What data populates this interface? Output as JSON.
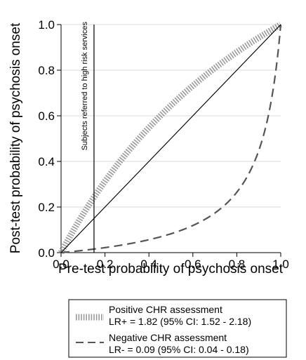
{
  "chart_data": {
    "type": "line",
    "xlabel": "Pre-test probability of psychosis onset",
    "ylabel": "Post-test probability of psychosis onset",
    "xlim": [
      0,
      1
    ],
    "ylim": [
      0,
      1
    ],
    "x_ticks": [
      "0.0",
      "0.2",
      "0.4",
      "0.6",
      "0.8",
      "1.0"
    ],
    "y_ticks": [
      "0.0",
      "0.2",
      "0.4",
      "0.6",
      "0.8",
      "1.0"
    ],
    "grid": "horizontal",
    "reference_line": {
      "x": 0.15,
      "label": "Subjects referred to high risk services"
    },
    "series": [
      {
        "name": "Positive CHR assessment",
        "stats": "LR+ = 1.82 (95% CI: 1.52 - 2.18)",
        "likelihood_ratio": 1.82,
        "style": "hatched",
        "color": "#9a9a9a"
      },
      {
        "name": "Negative CHR assessment",
        "stats": "LR- = 0.09 (95% CI: 0.04 - 0.18)",
        "likelihood_ratio": 0.09,
        "style": "dashed",
        "color": "#555555"
      },
      {
        "name": "",
        "likelihood_ratio": 1,
        "style": "solid",
        "color": "#000000"
      }
    ],
    "legend_position": "bottom"
  }
}
